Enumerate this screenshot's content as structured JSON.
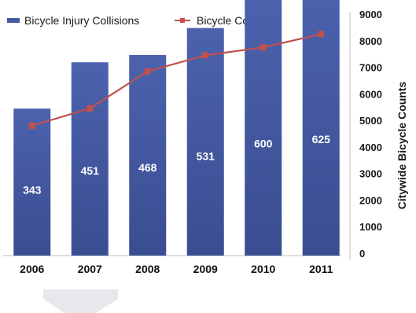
{
  "chart_data": {
    "type": "bar",
    "categories": [
      "2006",
      "2007",
      "2008",
      "2009",
      "2010",
      "2011"
    ],
    "series": [
      {
        "name": "Bicycle Injury Collisions",
        "chart_type": "bar",
        "values": [
          343,
          451,
          468,
          531,
          600,
          625
        ],
        "data_labels": [
          "343",
          "451",
          "468",
          "531",
          "600",
          "625"
        ],
        "color": "#4559a0"
      },
      {
        "name": "Bicycle Counts",
        "chart_type": "line",
        "axis": "right",
        "values": [
          4800,
          5450,
          6850,
          7450,
          7750,
          8250
        ],
        "color": "#c0504d"
      }
    ],
    "y2label": "Citywide Bicycle Counts",
    "y2lim": [
      0,
      9000
    ],
    "y2ticks": [
      "0",
      "1000",
      "2000",
      "3000",
      "4000",
      "5000",
      "6000",
      "7000",
      "8000",
      "9000"
    ],
    "ylim": [
      0,
      710
    ],
    "legend_position": "top-left",
    "grid": false
  }
}
